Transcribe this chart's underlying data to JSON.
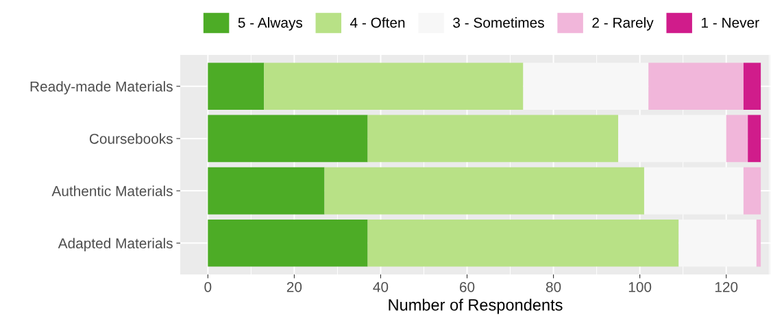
{
  "chart_data": {
    "type": "bar",
    "orientation": "horizontal",
    "stacked": true,
    "categories": [
      "Ready-made Materials",
      "Coursebooks",
      "Authentic Materials",
      "Adapted Materials"
    ],
    "series": [
      {
        "name": "5 - Always",
        "color": "#4dac26",
        "values": [
          13,
          37,
          27,
          37
        ]
      },
      {
        "name": "4 - Often",
        "color": "#b8e186",
        "values": [
          60,
          58,
          74,
          72
        ]
      },
      {
        "name": "3 - Sometimes",
        "color": "#f7f7f7",
        "values": [
          29,
          25,
          23,
          18
        ]
      },
      {
        "name": "2 - Rarely",
        "color": "#f1b6da",
        "values": [
          22,
          5,
          4,
          1
        ]
      },
      {
        "name": "1 - Never",
        "color": "#d01c8b",
        "values": [
          4,
          3,
          0,
          0
        ]
      }
    ],
    "xlabel": "Number of Respondents",
    "xlim": [
      -6.4,
      130.2
    ],
    "xticks": [
      0,
      20,
      40,
      60,
      80,
      100,
      120
    ],
    "grid": true,
    "legend": "top"
  }
}
